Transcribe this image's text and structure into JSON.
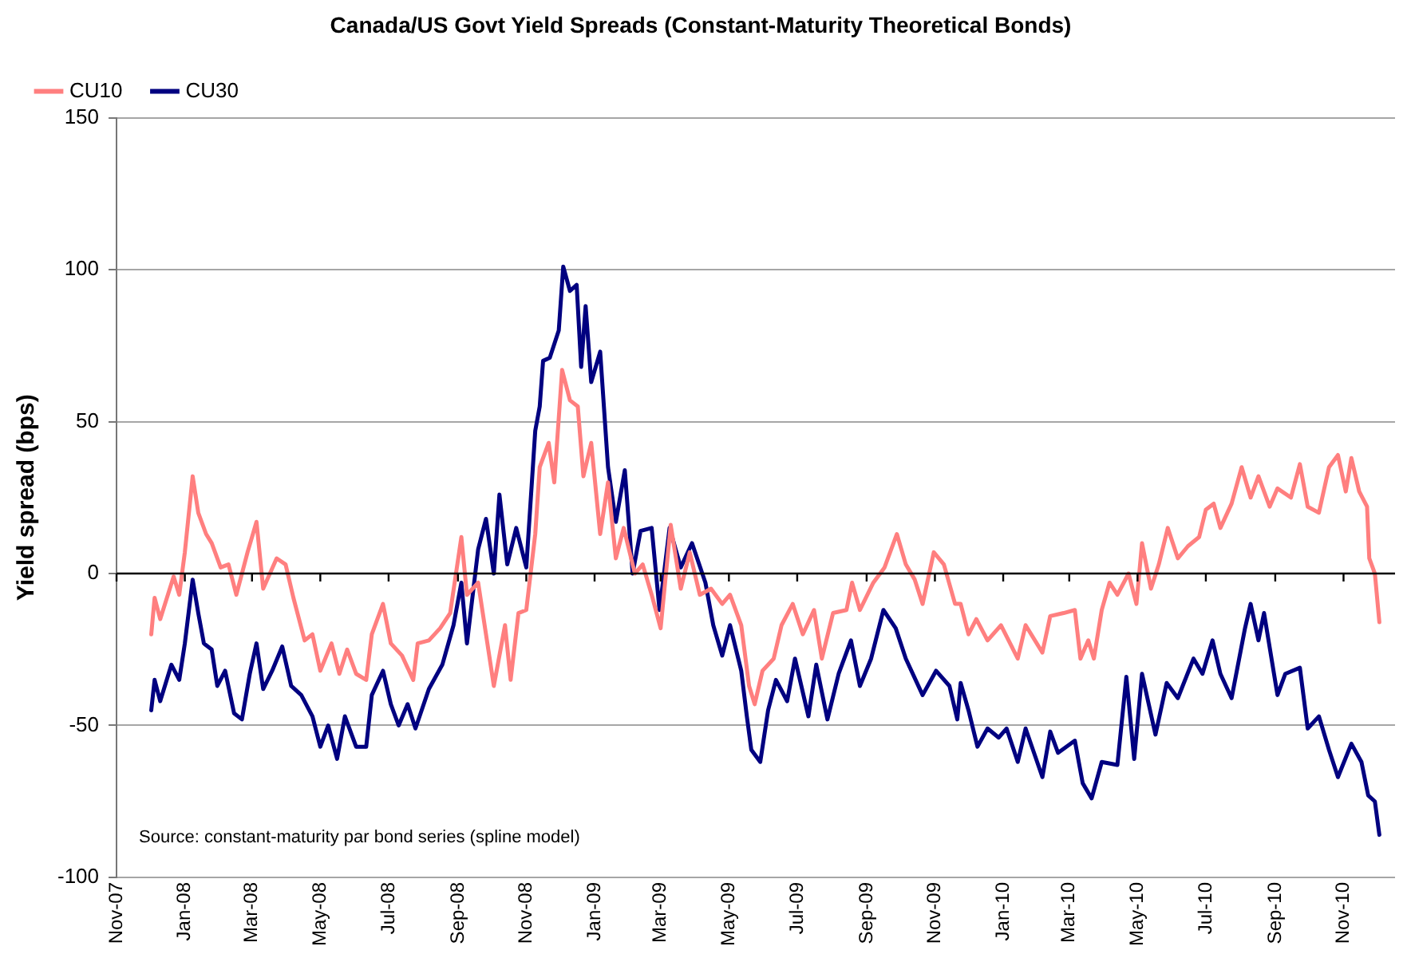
{
  "chart_data": {
    "type": "line",
    "title": "Canada/US Govt Yield Spreads (Constant-Maturity Theoretical Bonds)",
    "ylabel": "Yield spread (bps)",
    "xlim": [
      "2007-11-01",
      "2010-12-17"
    ],
    "xticks": [
      {
        "value": "2007-11-01",
        "label": "Nov-07"
      },
      {
        "value": "2008-01-01",
        "label": "Jan-08"
      },
      {
        "value": "2008-03-01",
        "label": "Mar-08"
      },
      {
        "value": "2008-05-01",
        "label": "May-08"
      },
      {
        "value": "2008-07-01",
        "label": "Jul-08"
      },
      {
        "value": "2008-09-01",
        "label": "Sep-08"
      },
      {
        "value": "2008-11-01",
        "label": "Nov-08"
      },
      {
        "value": "2009-01-01",
        "label": "Jan-09"
      },
      {
        "value": "2009-03-01",
        "label": "Mar-09"
      },
      {
        "value": "2009-05-01",
        "label": "May-09"
      },
      {
        "value": "2009-07-01",
        "label": "Jul-09"
      },
      {
        "value": "2009-09-01",
        "label": "Sep-09"
      },
      {
        "value": "2009-11-01",
        "label": "Nov-09"
      },
      {
        "value": "2010-01-01",
        "label": "Jan-10"
      },
      {
        "value": "2010-03-01",
        "label": "Mar-10"
      },
      {
        "value": "2010-05-01",
        "label": "May-10"
      },
      {
        "value": "2010-07-01",
        "label": "Jul-10"
      },
      {
        "value": "2010-09-01",
        "label": "Sep-10"
      },
      {
        "value": "2010-11-01",
        "label": "Nov-10"
      }
    ],
    "ylim": [
      -100,
      150
    ],
    "yticks": [
      -100,
      -50,
      0,
      50,
      100,
      150
    ],
    "grid": "y",
    "legend": "top left",
    "marker": "none",
    "line_style": "solid",
    "annotations": [
      "Source: constant-maturity par bond series (spline model)"
    ],
    "series": [
      {
        "name": "CU10",
        "color": "#ff7f7f",
        "x": [
          "2007-12-02",
          "2007-12-05",
          "2007-12-10",
          "2007-12-22",
          "2007-12-27",
          "2008-01-01",
          "2008-01-08",
          "2008-01-13",
          "2008-01-20",
          "2008-01-25",
          "2008-02-02",
          "2008-02-09",
          "2008-02-16",
          "2008-02-21",
          "2008-02-26",
          "2008-03-05",
          "2008-03-11",
          "2008-03-23",
          "2008-03-31",
          "2008-04-07",
          "2008-04-17",
          "2008-04-24",
          "2008-05-01",
          "2008-05-11",
          "2008-05-18",
          "2008-05-25",
          "2008-06-02",
          "2008-06-11",
          "2008-06-16",
          "2008-06-26",
          "2008-07-03",
          "2008-07-13",
          "2008-07-23",
          "2008-07-27",
          "2008-08-06",
          "2008-08-16",
          "2008-08-25",
          "2008-09-04",
          "2008-09-09",
          "2008-09-19",
          "2008-10-03",
          "2008-10-13",
          "2008-10-18",
          "2008-10-25",
          "2008-11-01",
          "2008-11-09",
          "2008-11-13",
          "2008-11-21",
          "2008-11-26",
          "2008-12-03",
          "2008-12-10",
          "2008-12-17",
          "2008-12-22",
          "2008-12-29",
          "2009-01-06",
          "2009-01-13",
          "2009-01-20",
          "2009-01-27",
          "2009-02-06",
          "2009-02-13",
          "2009-02-21",
          "2009-03-01",
          "2009-03-10",
          "2009-03-19",
          "2009-03-27",
          "2009-04-05",
          "2009-04-15",
          "2009-04-25",
          "2009-05-02",
          "2009-05-12",
          "2009-05-19",
          "2009-05-24",
          "2009-05-31",
          "2009-06-10",
          "2009-06-17",
          "2009-06-27",
          "2009-07-06",
          "2009-07-16",
          "2009-07-23",
          "2009-08-02",
          "2009-08-14",
          "2009-08-19",
          "2009-08-26",
          "2009-09-07",
          "2009-09-17",
          "2009-09-28",
          "2009-10-06",
          "2009-10-14",
          "2009-10-21",
          "2009-10-31",
          "2009-11-09",
          "2009-11-19",
          "2009-11-24",
          "2009-12-01",
          "2009-12-08",
          "2009-12-18",
          "2009-12-30",
          "2010-01-14",
          "2010-01-21",
          "2010-02-05",
          "2010-02-12",
          "2010-02-24",
          "2010-03-06",
          "2010-03-11",
          "2010-03-18",
          "2010-03-23",
          "2010-03-30",
          "2010-04-06",
          "2010-04-13",
          "2010-04-23",
          "2010-04-30",
          "2010-05-05",
          "2010-05-13",
          "2010-05-20",
          "2010-05-28",
          "2010-06-06",
          "2010-06-15",
          "2010-06-25",
          "2010-07-01",
          "2010-07-08",
          "2010-07-14",
          "2010-07-24",
          "2010-08-02",
          "2010-08-10",
          "2010-08-17",
          "2010-08-27",
          "2010-09-03",
          "2010-09-15",
          "2010-09-23",
          "2010-09-30",
          "2010-10-10",
          "2010-10-19",
          "2010-10-27",
          "2010-11-03",
          "2010-11-08",
          "2010-11-15",
          "2010-11-22",
          "2010-11-24",
          "2010-11-29",
          "2010-12-03"
        ],
        "values": [
          -20,
          -8,
          -15,
          -1,
          -7,
          7,
          32,
          20,
          13,
          10,
          2,
          3,
          -7,
          0,
          7,
          17,
          -5,
          5,
          3,
          -8,
          -22,
          -20,
          -32,
          -23,
          -33,
          -25,
          -33,
          -35,
          -20,
          -10,
          -23,
          -27,
          -35,
          -23,
          -22,
          -18,
          -13,
          12,
          -7,
          -3,
          -37,
          -17,
          -35,
          -13,
          -12,
          13,
          35,
          43,
          30,
          67,
          57,
          55,
          32,
          43,
          13,
          30,
          5,
          15,
          0,
          3,
          -7,
          -18,
          16,
          -5,
          7,
          -7,
          -5,
          -10,
          -7,
          -17,
          -37,
          -43,
          -32,
          -28,
          -17,
          -10,
          -20,
          -12,
          -28,
          -13,
          -12,
          -3,
          -12,
          -3,
          2,
          13,
          3,
          -2,
          -10,
          7,
          3,
          -10,
          -10,
          -20,
          -15,
          -22,
          -17,
          -28,
          -17,
          -26,
          -14,
          -13,
          -12,
          -28,
          -22,
          -28,
          -12,
          -3,
          -7,
          0,
          -10,
          10,
          -5,
          3,
          15,
          5,
          9,
          12,
          21,
          23,
          15,
          23,
          35,
          25,
          32,
          22,
          28,
          25,
          36,
          22,
          20,
          35,
          39,
          27,
          38,
          27,
          22,
          5,
          0,
          -16
        ]
      },
      {
        "name": "CU30",
        "color": "#000080",
        "x": [
          "2007-12-02",
          "2007-12-05",
          "2007-12-10",
          "2007-12-20",
          "2007-12-27",
          "2008-01-01",
          "2008-01-08",
          "2008-01-13",
          "2008-01-18",
          "2008-01-25",
          "2008-01-30",
          "2008-02-06",
          "2008-02-14",
          "2008-02-21",
          "2008-02-28",
          "2008-03-05",
          "2008-03-11",
          "2008-03-19",
          "2008-03-28",
          "2008-04-05",
          "2008-04-14",
          "2008-04-24",
          "2008-05-01",
          "2008-05-08",
          "2008-05-16",
          "2008-05-23",
          "2008-06-02",
          "2008-06-11",
          "2008-06-16",
          "2008-06-26",
          "2008-07-03",
          "2008-07-10",
          "2008-07-18",
          "2008-07-25",
          "2008-08-06",
          "2008-08-18",
          "2008-08-28",
          "2008-09-04",
          "2008-09-09",
          "2008-09-19",
          "2008-09-26",
          "2008-10-03",
          "2008-10-08",
          "2008-10-15",
          "2008-10-23",
          "2008-11-01",
          "2008-11-09",
          "2008-11-13",
          "2008-11-16",
          "2008-11-22",
          "2008-11-30",
          "2008-12-04",
          "2008-12-10",
          "2008-12-16",
          "2008-12-20",
          "2008-12-24",
          "2008-12-29",
          "2009-01-06",
          "2009-01-13",
          "2009-01-20",
          "2009-01-28",
          "2009-02-04",
          "2009-02-11",
          "2009-02-21",
          "2009-02-28",
          "2009-03-09",
          "2009-03-19",
          "2009-03-29",
          "2009-04-10",
          "2009-04-17",
          "2009-04-25",
          "2009-05-02",
          "2009-05-12",
          "2009-05-17",
          "2009-05-21",
          "2009-05-29",
          "2009-06-05",
          "2009-06-12",
          "2009-06-22",
          "2009-06-29",
          "2009-07-11",
          "2009-07-18",
          "2009-07-28",
          "2009-08-07",
          "2009-08-18",
          "2009-08-26",
          "2009-09-05",
          "2009-09-16",
          "2009-09-27",
          "2009-10-06",
          "2009-10-21",
          "2009-11-02",
          "2009-11-14",
          "2009-11-21",
          "2009-11-24",
          "2009-12-01",
          "2009-12-09",
          "2009-12-18",
          "2009-12-28",
          "2010-01-04",
          "2010-01-14",
          "2010-01-21",
          "2010-02-05",
          "2010-02-12",
          "2010-02-19",
          "2010-03-06",
          "2010-03-13",
          "2010-03-21",
          "2010-03-30",
          "2010-04-13",
          "2010-04-21",
          "2010-04-28",
          "2010-05-05",
          "2010-05-17",
          "2010-05-27",
          "2010-06-06",
          "2010-06-20",
          "2010-06-28",
          "2010-07-07",
          "2010-07-14",
          "2010-07-24",
          "2010-08-05",
          "2010-08-10",
          "2010-08-17",
          "2010-08-22",
          "2010-09-03",
          "2010-09-10",
          "2010-09-23",
          "2010-09-30",
          "2010-10-10",
          "2010-10-19",
          "2010-10-27",
          "2010-11-08",
          "2010-11-17",
          "2010-11-23",
          "2010-11-29",
          "2010-12-03"
        ],
        "values": [
          -45,
          -35,
          -42,
          -30,
          -35,
          -23,
          -2,
          -13,
          -23,
          -25,
          -37,
          -32,
          -46,
          -48,
          -33,
          -23,
          -38,
          -32,
          -24,
          -37,
          -40,
          -47,
          -57,
          -50,
          -61,
          -47,
          -57,
          -57,
          -40,
          -32,
          -43,
          -50,
          -43,
          -51,
          -38,
          -30,
          -17,
          -3,
          -23,
          8,
          18,
          0,
          26,
          3,
          15,
          2,
          47,
          55,
          70,
          71,
          80,
          101,
          93,
          95,
          68,
          88,
          63,
          73,
          35,
          17,
          34,
          0,
          14,
          15,
          -12,
          15,
          2,
          10,
          -3,
          -17,
          -27,
          -17,
          -32,
          -47,
          -58,
          -62,
          -45,
          -35,
          -42,
          -28,
          -47,
          -30,
          -48,
          -33,
          -22,
          -37,
          -28,
          -12,
          -18,
          -28,
          -40,
          -32,
          -37,
          -48,
          -36,
          -45,
          -57,
          -51,
          -54,
          -51,
          -62,
          -51,
          -67,
          -52,
          -59,
          -55,
          -69,
          -74,
          -62,
          -63,
          -34,
          -61,
          -33,
          -53,
          -36,
          -41,
          -28,
          -33,
          -22,
          -33,
          -41,
          -18,
          -10,
          -22,
          -13,
          -40,
          -33,
          -31,
          -51,
          -47,
          -58,
          -67,
          -56,
          -62,
          -73,
          -75,
          -86
        ]
      }
    ]
  }
}
